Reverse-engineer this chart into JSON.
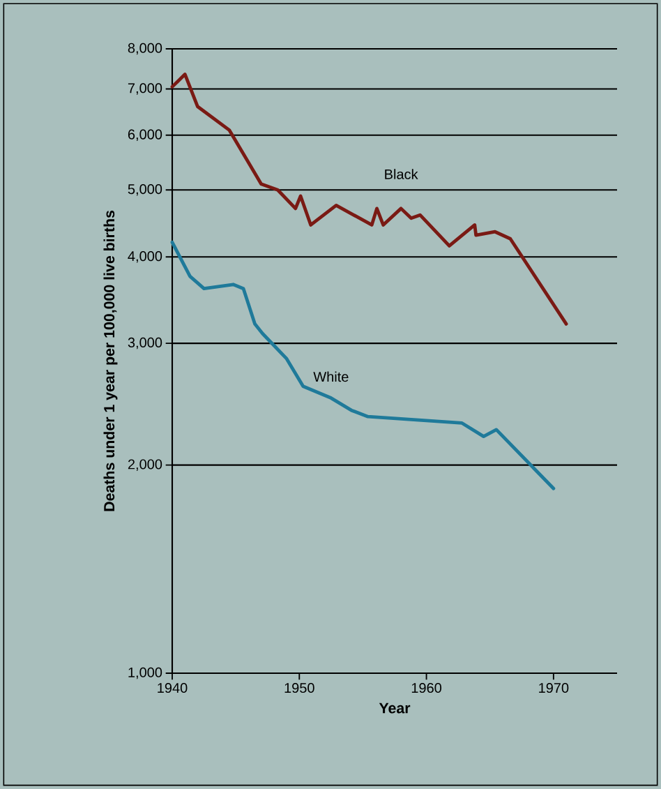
{
  "chart_data": {
    "type": "line",
    "xlabel": "Year",
    "ylabel": "Deaths under 1 year per 100,000 live births",
    "log": "y",
    "grid": "y",
    "marker": "none",
    "line_style": "solid",
    "xlim": [
      1940,
      1975
    ],
    "ylim": [
      1000,
      8000
    ],
    "xticks": [
      1940,
      1950,
      1960,
      1970
    ],
    "yticks": [
      {
        "value": 1000,
        "label": "1,000"
      },
      {
        "value": 2000,
        "label": "2,000"
      },
      {
        "value": 3000,
        "label": "3,000"
      },
      {
        "value": 4000,
        "label": "4,000"
      },
      {
        "value": 5000,
        "label": "5,000"
      },
      {
        "value": 6000,
        "label": "6,000"
      },
      {
        "value": 7000,
        "label": "7,000"
      },
      {
        "value": 8000,
        "label": "8,000"
      }
    ],
    "series": [
      {
        "name": "Black",
        "color": "#7a1a14",
        "x": [
          1940,
          1941,
          1942,
          1944.5,
          1947,
          1948.3,
          1949.7,
          1950.1,
          1950.9,
          1952.9,
          1955.7,
          1956.1,
          1956.6,
          1958,
          1958.8,
          1959.5,
          1961.8,
          1963.8,
          1963.9,
          1965.4,
          1966.6,
          1971
        ],
        "values": [
          7050,
          7350,
          6600,
          6100,
          5100,
          5000,
          4700,
          4900,
          4450,
          4750,
          4450,
          4700,
          4450,
          4700,
          4550,
          4600,
          4150,
          4450,
          4300,
          4350,
          4250,
          3200
        ]
      },
      {
        "name": "White",
        "color": "#1f7a9a",
        "x": [
          1940,
          1941.4,
          1942.5,
          1944.8,
          1945.6,
          1946.5,
          1947.1,
          1949,
          1950.3,
          1952.5,
          1954.1,
          1955.4,
          1962.8,
          1964.5,
          1965.5,
          1970
        ],
        "values": [
          4200,
          3750,
          3600,
          3650,
          3600,
          3200,
          3100,
          2850,
          2600,
          2500,
          2400,
          2350,
          2300,
          2200,
          2250,
          1850
        ]
      }
    ]
  }
}
